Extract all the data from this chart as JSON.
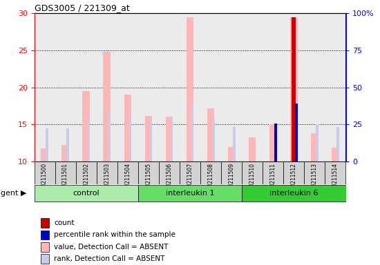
{
  "title": "GDS3005 / 221309_at",
  "samples": [
    "GSM211500",
    "GSM211501",
    "GSM211502",
    "GSM211503",
    "GSM211504",
    "GSM211505",
    "GSM211506",
    "GSM211507",
    "GSM211508",
    "GSM211509",
    "GSM211510",
    "GSM211511",
    "GSM211512",
    "GSM211513",
    "GSM211514"
  ],
  "value_bars": [
    11.8,
    12.3,
    19.5,
    24.8,
    19.0,
    16.2,
    16.1,
    29.5,
    17.2,
    12.0,
    13.3,
    15.0,
    29.5,
    13.8,
    11.9
  ],
  "rank_bars": [
    14.5,
    14.5,
    16.0,
    17.0,
    16.0,
    15.8,
    16.0,
    18.0,
    15.7,
    14.7,
    null,
    14.8,
    17.8,
    15.0,
    14.7
  ],
  "count_bars": [
    null,
    null,
    null,
    null,
    null,
    null,
    null,
    null,
    null,
    null,
    null,
    null,
    29.5,
    null,
    null
  ],
  "count_rank_bars": [
    null,
    null,
    null,
    null,
    null,
    null,
    null,
    null,
    null,
    null,
    null,
    15.1,
    17.8,
    null,
    null
  ],
  "bar_base": 10,
  "ylim": [
    10,
    30
  ],
  "y2lim": [
    0,
    100
  ],
  "yticks": [
    10,
    15,
    20,
    25,
    30
  ],
  "y2ticks": [
    0,
    25,
    50,
    75,
    100
  ],
  "groups": [
    {
      "label": "control",
      "start": 0,
      "end": 4
    },
    {
      "label": "interleukin 1",
      "start": 5,
      "end": 9
    },
    {
      "label": "interleukin 6",
      "start": 10,
      "end": 14
    }
  ],
  "group_colors": [
    "#aaeaaa",
    "#66dd66",
    "#33cc33"
  ],
  "color_value_bar": "#ffb6b6",
  "color_rank_bar": "#c8cce8",
  "color_count_bar": "#cc0000",
  "color_count_rank_bar": "#0000cc",
  "bar_width": 0.35,
  "rank_bar_width": 0.12,
  "dotted_yticks": [
    15,
    20,
    25
  ],
  "legend_items": [
    {
      "color": "#cc0000",
      "label": "count"
    },
    {
      "color": "#0000cc",
      "label": "percentile rank within the sample"
    },
    {
      "color": "#ffb6b6",
      "label": "value, Detection Call = ABSENT"
    },
    {
      "color": "#c8cce8",
      "label": "rank, Detection Call = ABSENT"
    }
  ],
  "background_plot": "#ebebeb",
  "background_sample_header": "#d3d3d3"
}
